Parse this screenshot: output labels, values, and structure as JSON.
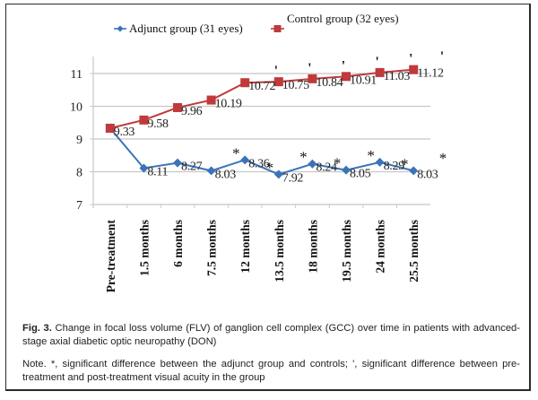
{
  "chart_data": {
    "type": "line",
    "title": "",
    "xlabel": "",
    "ylabel": "",
    "ylim": [
      7,
      11.5
    ],
    "yticks": [
      7,
      8,
      9,
      10,
      11
    ],
    "grid": true,
    "legend_position": "top",
    "categories": [
      "Pre-treatment",
      "1.5 months",
      "6 months",
      "7.5 months",
      "12 months",
      "13.5 months",
      "18 months",
      "19.5 months",
      "24 months",
      "25.5 months"
    ],
    "series": [
      {
        "name": "Adjunct group (31 eyes)",
        "color": "#3b73b9",
        "marker": "diamond",
        "values": [
          9.33,
          8.11,
          8.27,
          8.03,
          8.36,
          7.92,
          8.24,
          8.05,
          8.29,
          8.03
        ],
        "labels": [
          "",
          "8.11",
          "8.27",
          "8.03",
          "8.36",
          "7.92",
          "8.24",
          "8.05",
          "8.29",
          "8.03"
        ],
        "significance_marks": [
          "",
          "",
          "",
          "",
          "*",
          "*",
          "*",
          "*",
          "*",
          "*"
        ]
      },
      {
        "name": "Control group (32 eyes)",
        "color": "#c0393b",
        "marker": "square",
        "values": [
          9.33,
          9.58,
          9.96,
          10.19,
          10.72,
          10.75,
          10.84,
          10.91,
          11.03,
          11.12
        ],
        "labels": [
          "9.33",
          "9.58",
          "9.96",
          "10.19",
          "10.72",
          "10.75",
          "10.84",
          "10.91",
          "11.03",
          "11.12"
        ],
        "significance_marks": [
          "",
          "",
          "",
          "",
          "",
          "'",
          "'",
          "'",
          "'",
          "'"
        ]
      }
    ],
    "extra_annotations": [
      "'",
      "*"
    ]
  },
  "caption": {
    "fig_label": "Fig. 3.",
    "fig_text": " Change in focal loss volume (FLV) of ganglion cell complex (GCC) over time in patients with advanced-stage axial diabetic optic neuropathy (DON)",
    "note": "Note. *, significant difference between the adjunct group and controls; ', significant difference between pre-treatment and post-treatment visual acuity in the group"
  }
}
